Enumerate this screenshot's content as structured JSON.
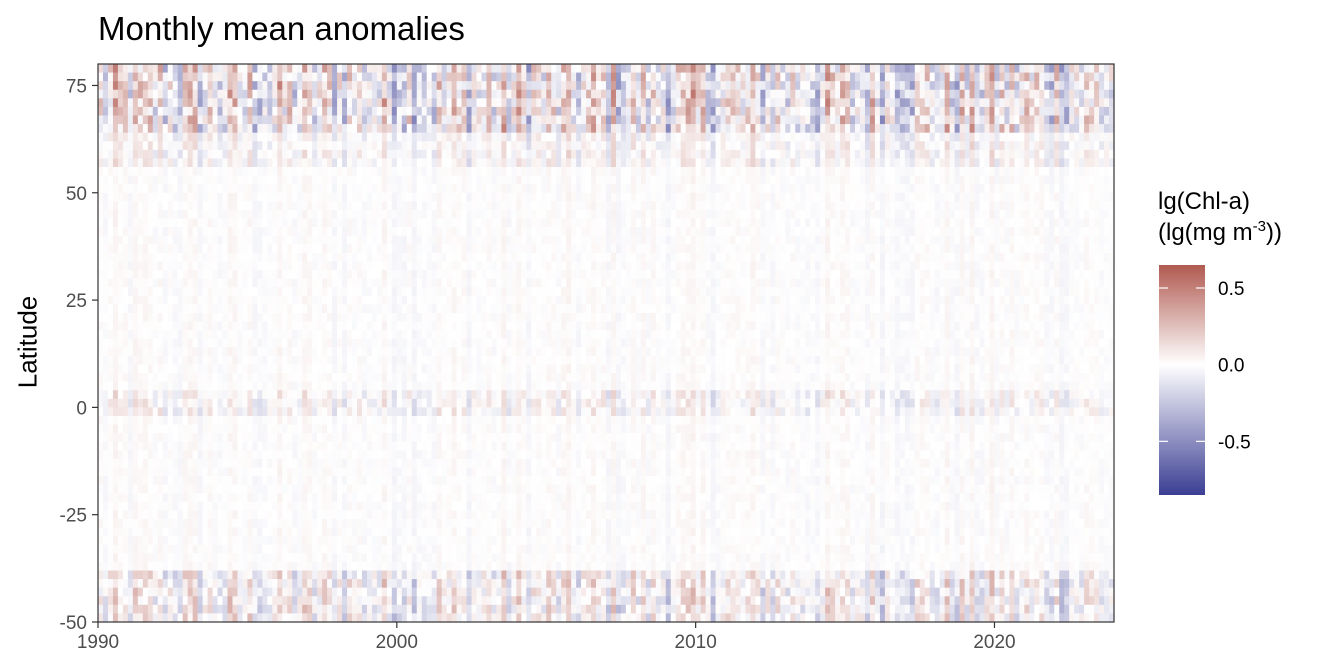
{
  "chart_data": {
    "type": "heatmap",
    "title": "Monthly mean anomalies",
    "xlabel": "",
    "ylabel": "Latitude",
    "xlim": [
      1990,
      2024
    ],
    "ylim": [
      -50,
      80
    ],
    "x_ticks": [
      "1990",
      "2000",
      "2010",
      "2020"
    ],
    "y_ticks": [
      "-50",
      "-25",
      "0",
      "25",
      "50",
      "75"
    ],
    "legend": {
      "title_line1": "lg(Chl-a)",
      "title_line2_prefix": "(lg(mg m",
      "title_line2_sup": "-3",
      "title_line2_suffix": "))",
      "placement": "right",
      "range": [
        -0.85,
        0.65
      ],
      "ticks": [
        "0.5",
        "0.0",
        "-0.5"
      ],
      "tick_values": [
        0.5,
        0.0,
        -0.5
      ],
      "colors": {
        "low": "#3b3e93",
        "mid": "#ffffff",
        "high": "#b05a50"
      }
    },
    "bands": [
      {
        "lat": [
          65,
          80
        ],
        "amplitude": 0.55,
        "note": "strong alternating anomalies near 75"
      },
      {
        "lat": [
          -2,
          3
        ],
        "amplitude": 0.2,
        "note": "equatorial anomalies"
      },
      {
        "lat": [
          -50,
          -38
        ],
        "amplitude": 0.35,
        "note": "southern ocean anomalies"
      }
    ],
    "grid": false
  }
}
